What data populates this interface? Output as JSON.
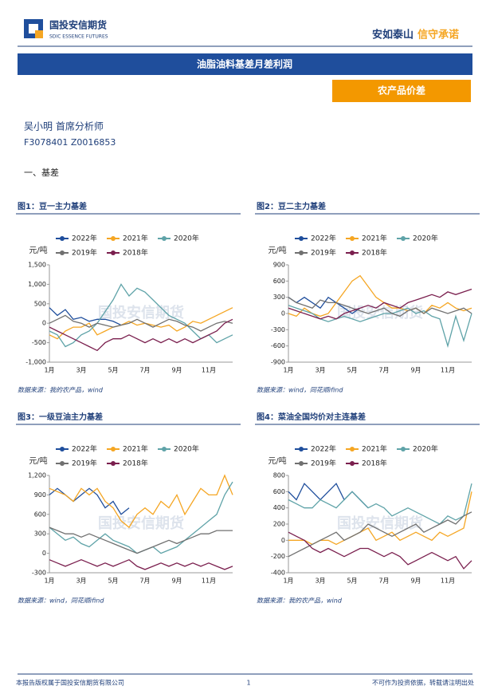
{
  "header": {
    "logo_name": "国投安信期货",
    "logo_sub": "SDIC ESSENCE FUTURES",
    "slogan_a": "安如泰山",
    "slogan_b": "信守承诺"
  },
  "report_title": "油脂油料基差月差利润",
  "section_tag": "农产品价差",
  "author": {
    "name": "吴小明 首席分析师",
    "ids": "F3078401 Z0016853"
  },
  "section": "一、基差",
  "watermark": "国投安信期货",
  "chart_data": [
    {
      "type": "line",
      "title": "图1：豆一主力基差",
      "source": "数据来源：我的农产品，wind",
      "y_label": "元/吨",
      "categories": [
        "1月",
        null,
        null,
        null,
        "3月",
        null,
        null,
        null,
        "5月",
        null,
        null,
        null,
        "7月",
        null,
        null,
        null,
        "9月",
        null,
        null,
        null,
        "11月",
        null,
        null,
        null
      ],
      "ylim": [
        -1000,
        1500
      ],
      "yticks": [
        {
          "value": -1000,
          "label": "-1,000"
        },
        -500,
        0,
        500,
        {
          "value": 1000,
          "label": "1,000"
        },
        {
          "value": 1500,
          "label": "1,500"
        }
      ],
      "series": [
        {
          "name": "2022年",
          "color": "#1f4e9c",
          "values": [
            400,
            200,
            350,
            100,
            150,
            50,
            100,
            100,
            50,
            -50,
            null,
            null,
            null,
            null,
            null,
            null,
            null,
            null,
            null,
            null,
            null,
            null,
            null,
            null
          ]
        },
        {
          "name": "2021年",
          "color": "#f5a623",
          "values": [
            -300,
            -400,
            -200,
            -100,
            -100,
            0,
            -300,
            -200,
            -100,
            -50,
            50,
            -50,
            0,
            -50,
            -100,
            -50,
            -200,
            -100,
            50,
            0,
            100,
            200,
            300,
            400
          ]
        },
        {
          "name": "2020年",
          "color": "#5fa3a8",
          "values": [
            -200,
            -300,
            -600,
            -500,
            -300,
            -200,
            0,
            300,
            600,
            1000,
            700,
            900,
            800,
            600,
            400,
            200,
            100,
            0,
            -200,
            -400,
            -300,
            -500,
            -400,
            -300
          ]
        },
        {
          "name": "2019年",
          "color": "#707070",
          "values": [
            0,
            100,
            200,
            50,
            0,
            -100,
            0,
            -50,
            -100,
            -50,
            0,
            100,
            0,
            -100,
            0,
            100,
            50,
            -50,
            -100,
            -200,
            -100,
            0,
            50,
            0
          ]
        },
        {
          "name": "2018年",
          "color": "#7a1f4e",
          "values": [
            -100,
            -200,
            -300,
            -400,
            -500,
            -600,
            -700,
            -500,
            -400,
            -400,
            -300,
            -400,
            -500,
            -400,
            -500,
            -400,
            -500,
            -400,
            -500,
            -400,
            -300,
            -200,
            0,
            100
          ]
        }
      ]
    },
    {
      "type": "line",
      "title": "图2：豆二主力基差",
      "source": "数据来源：wind，同花顺ifind",
      "y_label": "元/吨",
      "categories": [
        "1月",
        null,
        null,
        null,
        "3月",
        null,
        null,
        null,
        "5月",
        null,
        null,
        null,
        "7月",
        null,
        null,
        null,
        "9月",
        null,
        null,
        null,
        "11月",
        null,
        null,
        null
      ],
      "ylim": [
        -900,
        900
      ],
      "yticks": [
        -900,
        -600,
        -300,
        0,
        300,
        600,
        900
      ],
      "series": [
        {
          "name": "2022年",
          "color": "#1f4e9c",
          "values": [
            300,
            200,
            300,
            200,
            100,
            300,
            200,
            100,
            0,
            100,
            null,
            null,
            null,
            null,
            null,
            null,
            null,
            null,
            null,
            null,
            null,
            null,
            null,
            null
          ]
        },
        {
          "name": "2021年",
          "color": "#f5a623",
          "values": [
            0,
            -50,
            100,
            0,
            -50,
            0,
            200,
            400,
            600,
            700,
            500,
            300,
            200,
            100,
            100,
            50,
            100,
            0,
            150,
            100,
            200,
            100,
            50,
            100
          ]
        },
        {
          "name": "2020年",
          "color": "#5fa3a8",
          "values": [
            150,
            100,
            50,
            0,
            -100,
            -150,
            -100,
            -50,
            -100,
            -150,
            -100,
            -50,
            0,
            0,
            50,
            100,
            0,
            50,
            -50,
            -100,
            -600,
            -50,
            -500,
            0
          ]
        },
        {
          "name": "2019年",
          "color": "#707070",
          "values": [
            300,
            200,
            150,
            100,
            250,
            200,
            200,
            150,
            100,
            50,
            0,
            50,
            100,
            0,
            -50,
            50,
            100,
            0,
            100,
            50,
            0,
            50,
            100,
            0
          ]
        },
        {
          "name": "2018年",
          "color": "#7a1f4e",
          "values": [
            100,
            50,
            0,
            -50,
            -100,
            -50,
            -100,
            0,
            50,
            100,
            150,
            100,
            200,
            150,
            100,
            200,
            250,
            300,
            350,
            300,
            400,
            350,
            400,
            450
          ]
        }
      ]
    },
    {
      "type": "line",
      "title": "图3：一级豆油主力基差",
      "source": "数据来源：wind，同花顺ifind",
      "y_label": "元/吨",
      "categories": [
        "1月",
        null,
        null,
        null,
        "3月",
        null,
        null,
        null,
        "5月",
        null,
        null,
        null,
        "7月",
        null,
        null,
        null,
        "9月",
        null,
        null,
        null,
        "11月",
        null,
        null,
        null
      ],
      "ylim": [
        -300,
        1200
      ],
      "yticks": [
        -300,
        0,
        300,
        600,
        900,
        {
          "value": 1200,
          "label": "1,200"
        }
      ],
      "series": [
        {
          "name": "2022年",
          "color": "#1f4e9c",
          "values": [
            900,
            1000,
            900,
            800,
            900,
            1000,
            900,
            700,
            800,
            600,
            700,
            null,
            null,
            null,
            null,
            null,
            null,
            null,
            null,
            null,
            null,
            null,
            null,
            null
          ]
        },
        {
          "name": "2021年",
          "color": "#f5a623",
          "values": [
            1000,
            950,
            900,
            800,
            1000,
            900,
            1000,
            800,
            700,
            500,
            400,
            600,
            700,
            600,
            800,
            700,
            900,
            600,
            800,
            1000,
            900,
            900,
            1200,
            900
          ]
        },
        {
          "name": "2020年",
          "color": "#5fa3a8",
          "values": [
            400,
            300,
            200,
            250,
            150,
            100,
            200,
            300,
            200,
            150,
            100,
            0,
            50,
            100,
            0,
            50,
            100,
            200,
            300,
            400,
            500,
            600,
            900,
            1100
          ]
        },
        {
          "name": "2019年",
          "color": "#707070",
          "values": [
            400,
            350,
            300,
            300,
            250,
            300,
            250,
            200,
            150,
            100,
            50,
            0,
            50,
            100,
            150,
            200,
            150,
            200,
            250,
            300,
            300,
            350,
            350,
            350
          ]
        },
        {
          "name": "2018年",
          "color": "#7a1f4e",
          "values": [
            -100,
            -150,
            -200,
            -150,
            -100,
            -150,
            -200,
            -150,
            -200,
            -150,
            -100,
            -200,
            -250,
            -200,
            -150,
            -200,
            -150,
            -200,
            -150,
            -200,
            -150,
            -200,
            -250,
            -200
          ]
        }
      ]
    },
    {
      "type": "line",
      "title": "图4：菜油全国均价对主连基差",
      "source": "数据来源：我的农产品，wind",
      "y_label": "元/吨",
      "categories": [
        "1月",
        null,
        null,
        null,
        "3月",
        null,
        null,
        null,
        "5月",
        null,
        null,
        null,
        "7月",
        null,
        null,
        null,
        "9月",
        null,
        null,
        null,
        "11月",
        null,
        null,
        null
      ],
      "ylim": [
        -400,
        800
      ],
      "yticks": [
        -400,
        -200,
        0,
        200,
        400,
        600,
        800
      ],
      "series": [
        {
          "name": "2022年",
          "color": "#1f4e9c",
          "values": [
            600,
            500,
            700,
            600,
            500,
            600,
            700,
            500,
            600,
            500,
            400,
            null,
            null,
            null,
            null,
            null,
            null,
            null,
            null,
            null,
            null,
            null,
            null,
            null
          ]
        },
        {
          "name": "2021年",
          "color": "#f5a623",
          "values": [
            0,
            0,
            0,
            -50,
            0,
            0,
            -50,
            0,
            50,
            100,
            150,
            0,
            50,
            100,
            0,
            50,
            100,
            50,
            0,
            100,
            50,
            100,
            150,
            600
          ]
        },
        {
          "name": "2020年",
          "color": "#5fa3a8",
          "values": [
            500,
            450,
            400,
            400,
            500,
            450,
            400,
            500,
            600,
            500,
            400,
            450,
            400,
            300,
            350,
            400,
            350,
            300,
            250,
            200,
            300,
            250,
            300,
            700
          ]
        },
        {
          "name": "2019年",
          "color": "#707070",
          "values": [
            -200,
            -150,
            -100,
            -50,
            0,
            50,
            100,
            0,
            50,
            100,
            200,
            150,
            100,
            50,
            100,
            150,
            200,
            100,
            150,
            200,
            250,
            200,
            300,
            350
          ]
        },
        {
          "name": "2018年",
          "color": "#7a1f4e",
          "values": [
            100,
            50,
            0,
            -100,
            -150,
            -100,
            -150,
            -200,
            -150,
            -100,
            -100,
            -150,
            -200,
            -150,
            -200,
            -300,
            -250,
            -200,
            -150,
            -200,
            -250,
            -200,
            -350,
            -250
          ]
        }
      ]
    }
  ],
  "footer": {
    "left": "本报告版权属于国投安信期货有限公司",
    "page": "1",
    "right": "不可作为投资依据，转载请注明出处"
  }
}
